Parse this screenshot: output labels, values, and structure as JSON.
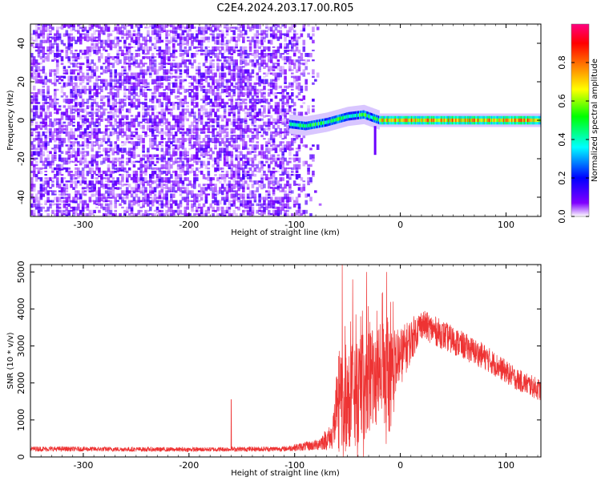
{
  "title": "C2E4.2024.203.17.00.R05",
  "chart_data": [
    {
      "type": "heatmap",
      "xlabel": "Height of straight line (km)",
      "ylabel": "Frequency (Hz)",
      "xlim": [
        -350,
        133
      ],
      "ylim": [
        -50,
        50
      ],
      "xticks": [
        -300,
        -200,
        -100,
        0,
        100
      ],
      "yticks": [
        -40,
        -20,
        0,
        20,
        40
      ],
      "colorbar": {
        "label": "Normalized spectral amplitude",
        "range": [
          0,
          1
        ],
        "ticks": [
          "0.0",
          "0.2",
          "0.4",
          "0.6",
          "0.8"
        ],
        "colormap": [
          "#ffffff",
          "#8000ff",
          "#0000ff",
          "#00ffff",
          "#00ff00",
          "#ffff00",
          "#ff8000",
          "#ff0000",
          "#ff0080"
        ]
      },
      "noise_region_x": [
        -350,
        -75
      ],
      "signal": {
        "start_x": -105,
        "center_freq": [
          {
            "x": -105,
            "f": -2
          },
          {
            "x": -90,
            "f": -3
          },
          {
            "x": -70,
            "f": -1
          },
          {
            "x": -50,
            "f": 2
          },
          {
            "x": -35,
            "f": 3
          },
          {
            "x": -20,
            "f": 0
          },
          {
            "x": 0,
            "f": 0
          },
          {
            "x": 133,
            "f": 0
          }
        ],
        "tail": {
          "x": -25,
          "f_min": -18
        }
      }
    },
    {
      "type": "line",
      "xlabel": "Height of straight line (km)",
      "ylabel": "SNR (10 * v/v)",
      "xlim": [
        -350,
        133
      ],
      "ylim": [
        0,
        5200
      ],
      "xticks": [
        -300,
        -200,
        -100,
        0,
        100
      ],
      "yticks": [
        0,
        1000,
        2000,
        3000,
        4000,
        5000
      ],
      "color": "#ee3333",
      "envelope": [
        {
          "x": -350,
          "base": 220,
          "noise": 70
        },
        {
          "x": -200,
          "base": 200,
          "noise": 60
        },
        {
          "x": -110,
          "base": 220,
          "noise": 70
        },
        {
          "x": -80,
          "base": 320,
          "noise": 150
        },
        {
          "x": -65,
          "base": 550,
          "noise": 350
        },
        {
          "x": -58,
          "base": 1500,
          "noise": 1400
        },
        {
          "x": -40,
          "base": 1800,
          "noise": 1500
        },
        {
          "x": -20,
          "base": 2200,
          "noise": 1300
        },
        {
          "x": 0,
          "base": 2700,
          "noise": 800
        },
        {
          "x": 20,
          "base": 3600,
          "noise": 400
        },
        {
          "x": 40,
          "base": 3300,
          "noise": 400
        },
        {
          "x": 80,
          "base": 2700,
          "noise": 350
        },
        {
          "x": 110,
          "base": 2100,
          "noise": 300
        },
        {
          "x": 133,
          "base": 1800,
          "noise": 300
        }
      ],
      "spikes": [
        {
          "x": -160,
          "y": 1550
        },
        {
          "x": -55,
          "y": 5200
        },
        {
          "x": -45,
          "y": 4800
        },
        {
          "x": -32,
          "y": 5000
        },
        {
          "x": -13,
          "y": 5000
        }
      ]
    }
  ]
}
